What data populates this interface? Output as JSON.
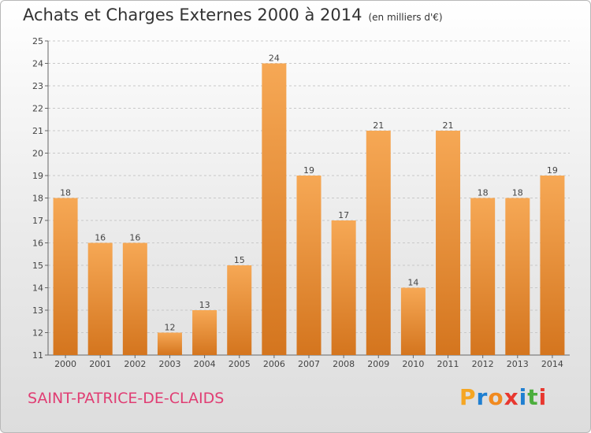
{
  "title": "Achats et Charges Externes 2000 à 2014",
  "subtitle": "(en milliers d'€)",
  "commune": "SAINT-PATRICE-DE-CLAIDS",
  "logo": {
    "text": "Proxiti",
    "letter_colors": [
      "#f5a623",
      "#1f7fd1",
      "#f18a20",
      "#e8372f",
      "#1f7fd1",
      "#4cae3d",
      "#e8372f"
    ]
  },
  "colors": {
    "bar_light": "#f6a855",
    "bar_dark": "#d4751e",
    "grid": "#c8c8c8",
    "axis_text": "#444444"
  },
  "chart_data": {
    "type": "bar",
    "categories": [
      "2000",
      "2001",
      "2002",
      "2003",
      "2004",
      "2005",
      "2006",
      "2007",
      "2008",
      "2009",
      "2010",
      "2011",
      "2012",
      "2013",
      "2014"
    ],
    "values": [
      18,
      16,
      16,
      12,
      13,
      15,
      24,
      19,
      17,
      21,
      14,
      21,
      18,
      18,
      19
    ],
    "ylim": [
      11,
      25
    ],
    "yticks": [
      11,
      12,
      13,
      14,
      15,
      16,
      17,
      18,
      19,
      20,
      21,
      22,
      23,
      24,
      25
    ],
    "grid": true,
    "data_labels": true
  }
}
